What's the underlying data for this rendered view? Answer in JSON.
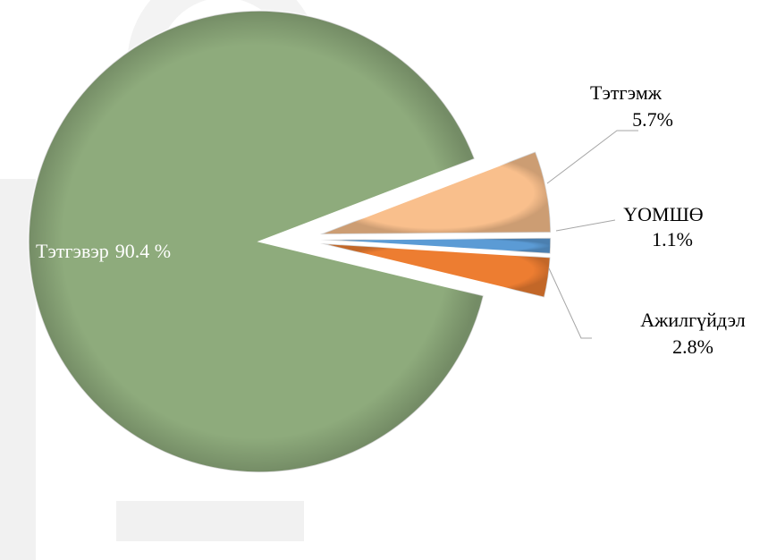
{
  "chart_data": {
    "type": "pie",
    "categories": [
      "Тэтгэмж",
      "ҮОМШӨ",
      "Ажилгүйдэл",
      "Тэтгэвэр"
    ],
    "values": [
      5.7,
      1.1,
      2.8,
      90.4
    ],
    "value_labels": [
      "5.7%",
      "1.1%",
      "2.8%",
      "90.4 %"
    ],
    "colors": [
      "#f9bf8c",
      "#5b9bd5",
      "#ed7d31",
      "#8eab7c"
    ]
  }
}
